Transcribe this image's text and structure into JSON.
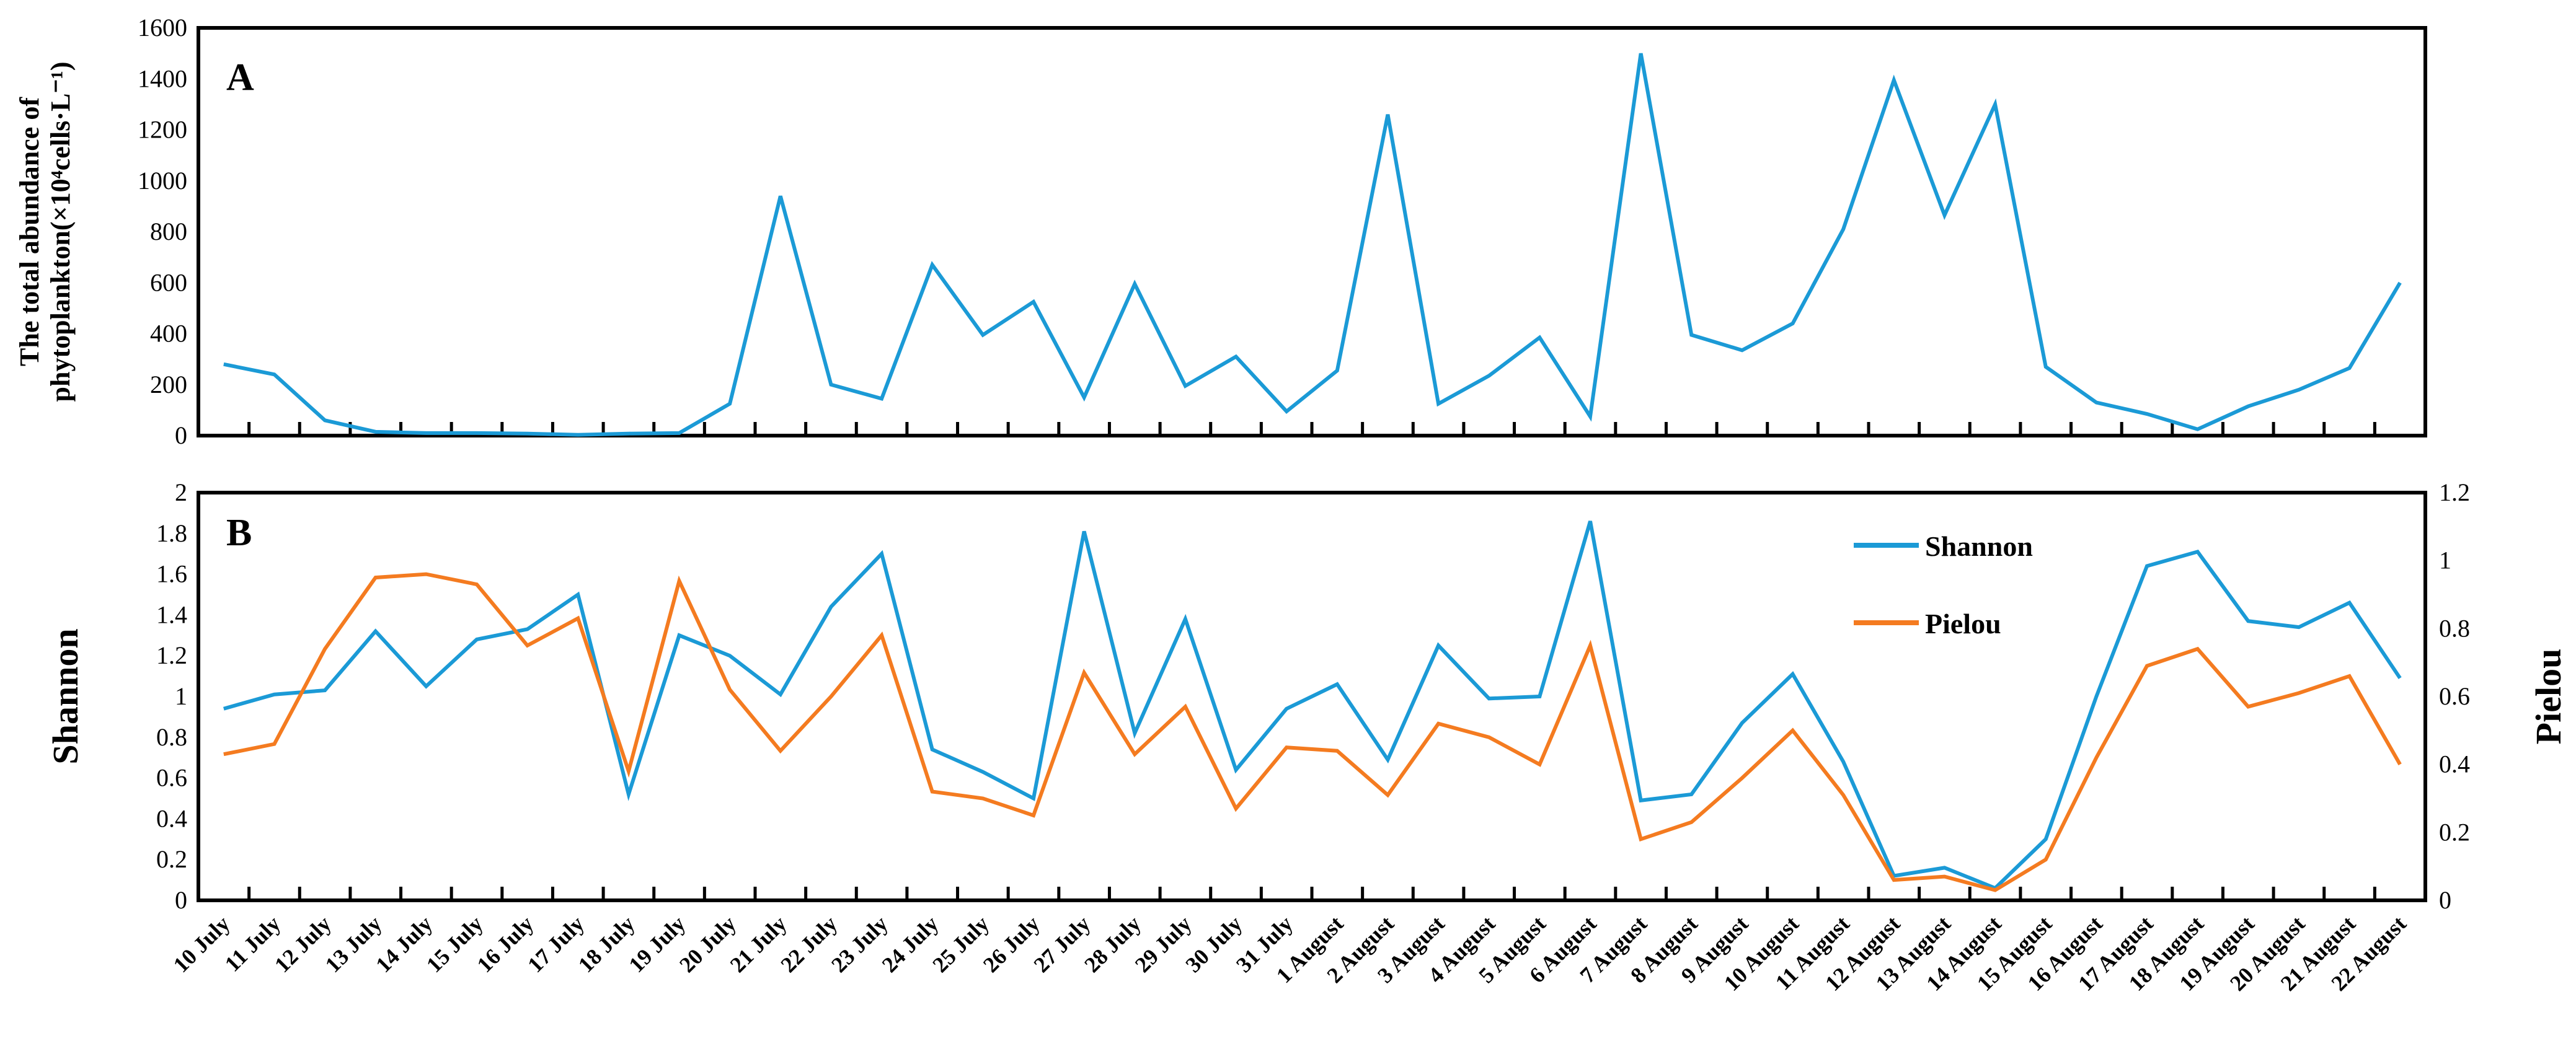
{
  "chart_data": [
    {
      "type": "line",
      "panel_label": "A",
      "ylabel_line1": "The total abundance of",
      "ylabel_line2": "phytoplankton(×10⁴cells·L⁻¹)",
      "ylim": [
        0,
        1600
      ],
      "yticks": [
        0,
        200,
        400,
        600,
        800,
        1000,
        1200,
        1400,
        1600
      ],
      "grid": false,
      "series": [
        {
          "values": [
            280,
            240,
            60,
            15,
            10,
            10,
            8,
            3,
            8,
            10,
            125,
            940,
            200,
            145,
            670,
            395,
            525,
            150,
            595,
            195,
            310,
            95,
            255,
            1260,
            125,
            235,
            385,
            75,
            1500,
            395,
            335,
            440,
            810,
            1395,
            865,
            1300,
            270,
            130,
            85,
            25,
            115,
            180,
            265,
            600
          ]
        }
      ]
    },
    {
      "type": "line",
      "panel_label": "B",
      "ylabel": "Shannon",
      "y2label": "Pielou",
      "ylim": [
        0,
        2
      ],
      "y2lim": [
        0,
        1.2
      ],
      "yticks": [
        0,
        0.2,
        0.4,
        0.6,
        0.8,
        1,
        1.2,
        1.4,
        1.6,
        1.8,
        2
      ],
      "y2ticks": [
        0,
        0.2,
        0.4,
        0.6,
        0.8,
        1,
        1.2
      ],
      "grid": false,
      "legend": "top-right",
      "series": [
        {
          "name": "Shannon",
          "axis": "left",
          "color": "#1B9AD6",
          "values": [
            0.94,
            1.01,
            1.03,
            1.32,
            1.05,
            1.28,
            1.33,
            1.5,
            0.52,
            1.3,
            1.2,
            1.01,
            1.44,
            1.7,
            0.74,
            0.63,
            0.5,
            1.81,
            0.82,
            1.38,
            0.64,
            0.94,
            1.06,
            0.69,
            1.25,
            0.99,
            1.0,
            1.86,
            0.49,
            0.52,
            0.87,
            1.11,
            0.68,
            0.12,
            0.16,
            0.06,
            0.3,
            1.0,
            1.64,
            1.71,
            1.37,
            1.34,
            1.46,
            1.09
          ]
        },
        {
          "name": "Pielou",
          "axis": "right",
          "color": "#F47B20",
          "values": [
            0.43,
            0.46,
            0.74,
            0.95,
            0.96,
            0.93,
            0.75,
            0.83,
            0.38,
            0.94,
            0.62,
            0.44,
            0.6,
            0.78,
            0.32,
            0.3,
            0.25,
            0.67,
            0.43,
            0.57,
            0.27,
            0.45,
            0.44,
            0.31,
            0.52,
            0.48,
            0.4,
            0.75,
            0.18,
            0.23,
            0.36,
            0.5,
            0.31,
            0.06,
            0.07,
            0.03,
            0.12,
            0.42,
            0.69,
            0.74,
            0.57,
            0.61,
            0.66,
            0.4
          ]
        }
      ]
    }
  ],
  "categories": [
    "10 July",
    "11 July",
    "12 July",
    "13 July",
    "14 July",
    "15 July",
    "16 July",
    "17 July",
    "18 July",
    "19 July",
    "20 July",
    "21 July",
    "22 July",
    "23 July",
    "24 July",
    "25 July",
    "26 July",
    "27 July",
    "28 July",
    "29 July",
    "30 July",
    "31 July",
    "1 August",
    "2 August",
    "3 August",
    "4 August",
    "5 August",
    "6 August",
    "7 August",
    "8 August",
    "9 August",
    "10 August",
    "11 August",
    "12 August",
    "13 August",
    "14 August",
    "15 August",
    "16 August",
    "17 August",
    "18 August",
    "19 August",
    "20 August",
    "21 August",
    "22 August"
  ],
  "colors": {
    "line": "#1B9AD6",
    "shannon": "#1B9AD6",
    "pielou": "#F47B20",
    "axis": "#000000"
  }
}
